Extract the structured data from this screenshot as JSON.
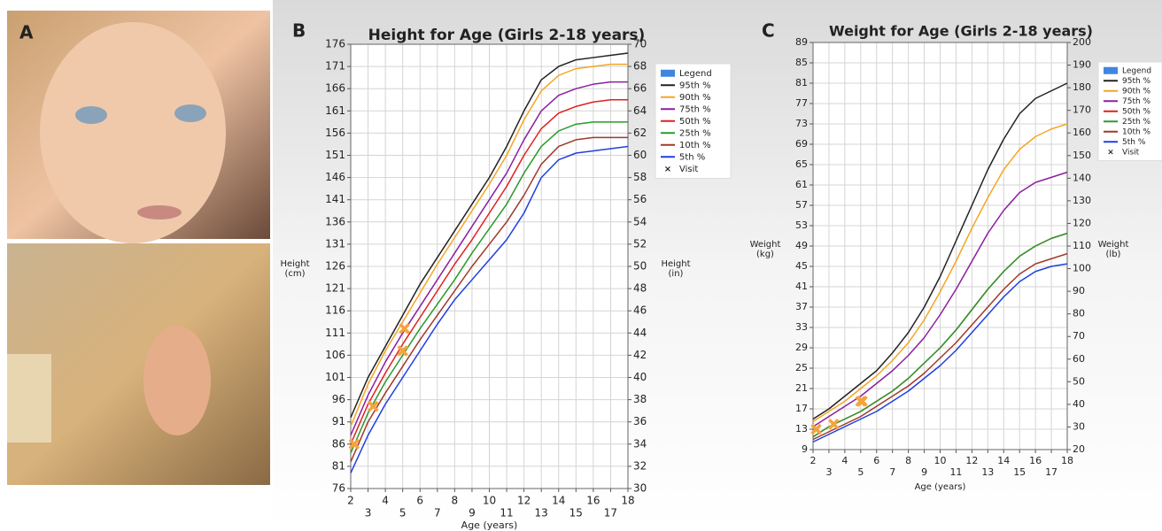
{
  "panel_labels": [
    "A",
    "B",
    "C"
  ],
  "chart_data": [
    {
      "type": "line",
      "title": "Height for Age (Girls 2-18 years)",
      "xlabel": "Age (years)",
      "ylabel": [
        "Height",
        "(cm)"
      ],
      "y2label": [
        "Height",
        "(in)"
      ],
      "legend_title": "Legend",
      "legend_color": "#3f86e0",
      "legend": "upper right",
      "grid": true,
      "x": [
        2,
        3,
        4,
        5,
        6,
        7,
        8,
        9,
        10,
        11,
        12,
        13,
        14,
        15,
        16,
        17,
        18
      ],
      "xlim": [
        2,
        18
      ],
      "xticks": [
        2,
        3,
        4,
        5,
        6,
        7,
        8,
        9,
        10,
        11,
        12,
        13,
        14,
        15,
        16,
        17,
        18
      ],
      "ylim": [
        76,
        176
      ],
      "yticks": [
        76,
        81,
        86,
        91,
        96,
        101,
        106,
        111,
        116,
        121,
        126,
        131,
        136,
        141,
        146,
        151,
        156,
        161,
        166,
        171,
        176
      ],
      "y2lim": [
        30,
        70
      ],
      "y2ticks": [
        30,
        32,
        34,
        36,
        38,
        40,
        42,
        44,
        46,
        48,
        50,
        52,
        54,
        56,
        58,
        60,
        62,
        64,
        66,
        68,
        70
      ],
      "series": [
        {
          "name": "95th %",
          "color": "#222222",
          "values": [
            92,
            101,
            108,
            115,
            122,
            128,
            134,
            140,
            146,
            153,
            161,
            168,
            171,
            172.5,
            173,
            173.5,
            174
          ]
        },
        {
          "name": "90th %",
          "color": "#f5a623",
          "values": [
            90,
            99.5,
            107,
            113.5,
            120,
            126.5,
            132.5,
            138.5,
            144.5,
            151,
            159,
            165.5,
            169,
            170.5,
            171,
            171.5,
            171.5
          ]
        },
        {
          "name": "75th %",
          "color": "#8b1fa0",
          "values": [
            88,
            97,
            104.5,
            111,
            117,
            123,
            129,
            135,
            141,
            147,
            154.5,
            161,
            164.5,
            166,
            167,
            167.5,
            167.5
          ]
        },
        {
          "name": "50th %",
          "color": "#e02020",
          "values": [
            86,
            95,
            102,
            108.5,
            114.5,
            120.5,
            126.5,
            132,
            138,
            144,
            151,
            157,
            160.5,
            162,
            163,
            163.5,
            163.5
          ]
        },
        {
          "name": "25th %",
          "color": "#2a9a2a",
          "values": [
            84,
            93,
            100,
            106,
            112,
            117.5,
            123,
            129,
            134.5,
            140,
            147,
            153,
            156.5,
            158,
            158.5,
            158.5,
            158.5
          ]
        },
        {
          "name": "10th %",
          "color": "#a0392b",
          "values": [
            82,
            91,
            97.5,
            103.5,
            109.5,
            115,
            120.5,
            126,
            131,
            136,
            142,
            149,
            153,
            154.5,
            155,
            155,
            155
          ]
        },
        {
          "name": "5th %",
          "color": "#1f3fe0",
          "values": [
            79.5,
            88,
            95,
            101,
            107,
            113,
            118.5,
            123,
            127.5,
            132,
            138,
            146,
            150,
            151.5,
            152,
            152.5,
            153
          ]
        },
        {
          "name": "Visit",
          "type": "scatter",
          "marker": "x",
          "color": "#f5a33a",
          "x": [
            2.2,
            3.3,
            5.0,
            5.1
          ],
          "values": [
            86,
            94.5,
            107,
            112
          ]
        }
      ]
    },
    {
      "type": "line",
      "title": "Weight for Age (Girls 2-18 years)",
      "xlabel": "Age (years)",
      "ylabel": [
        "Weight",
        "(kg)"
      ],
      "y2label": [
        "Weight",
        "(lb)"
      ],
      "legend_title": "Legend",
      "legend_color": "#3f86e0",
      "legend": "upper right",
      "grid": true,
      "x": [
        2,
        3,
        4,
        5,
        6,
        7,
        8,
        9,
        10,
        11,
        12,
        13,
        14,
        15,
        16,
        17,
        18
      ],
      "xlim": [
        2,
        18
      ],
      "xticks": [
        2,
        3,
        4,
        5,
        6,
        7,
        8,
        9,
        10,
        11,
        12,
        13,
        14,
        15,
        16,
        17,
        18
      ],
      "ylim": [
        9,
        89
      ],
      "yticks": [
        9,
        13,
        17,
        21,
        25,
        29,
        33,
        37,
        41,
        45,
        49,
        53,
        57,
        61,
        65,
        69,
        73,
        77,
        81,
        85,
        89
      ],
      "y2lim": [
        20,
        200
      ],
      "y2ticks": [
        20,
        30,
        40,
        50,
        60,
        70,
        80,
        90,
        100,
        110,
        120,
        130,
        140,
        150,
        160,
        170,
        180,
        190,
        200
      ],
      "series": [
        {
          "name": "95th %",
          "color": "#222222",
          "values": [
            15,
            17,
            19.5,
            22,
            24.5,
            28,
            32,
            37,
            43,
            50,
            57,
            64,
            70,
            75,
            78,
            79.5,
            81
          ]
        },
        {
          "name": "90th %",
          "color": "#f5a623",
          "values": [
            14.5,
            16.5,
            18.5,
            21,
            23.5,
            26.5,
            30,
            34.5,
            40,
            46,
            52.5,
            58.5,
            64,
            68,
            70.5,
            72,
            73
          ]
        },
        {
          "name": "75th %",
          "color": "#8b1fa0",
          "values": [
            13.5,
            15.5,
            17.5,
            19.5,
            22,
            24.5,
            27.5,
            31,
            35.5,
            40.5,
            46,
            51.5,
            56,
            59.5,
            61.5,
            62.5,
            63.5
          ]
        },
        {
          "name": "50th %",
          "color": "#e02020",
          "values": [
            11.5,
            13.5,
            15,
            16.5,
            18.5,
            20.5,
            23,
            26,
            29,
            32.5,
            36.5,
            40.5,
            44,
            47,
            49,
            50.5,
            51.5
          ]
        },
        {
          "name": "25th %",
          "color": "#2a9a2a",
          "values": [
            11.5,
            13.5,
            15,
            16.5,
            18.5,
            20.5,
            23,
            26,
            29,
            32.5,
            36.5,
            40.5,
            44,
            47,
            49,
            50.5,
            51.5
          ]
        },
        {
          "name": "10th %",
          "color": "#a0392b",
          "values": [
            11,
            12.5,
            14,
            15.5,
            17.5,
            19.5,
            21.5,
            24,
            27,
            30,
            33.5,
            37,
            40.5,
            43.5,
            45.5,
            46.5,
            47.5
          ]
        },
        {
          "name": "5th %",
          "color": "#1f3fe0",
          "values": [
            10.5,
            12,
            13.5,
            15,
            16.5,
            18.5,
            20.5,
            23,
            25.5,
            28.5,
            32,
            35.5,
            39,
            42,
            44,
            45,
            45.5
          ]
        },
        {
          "name": "Visit",
          "type": "scatter",
          "marker": "x",
          "color": "#f5a33a",
          "x": [
            2.2,
            3.3,
            5.0,
            5.1
          ],
          "values": [
            13,
            14,
            18.5,
            18.5
          ]
        }
      ]
    }
  ]
}
